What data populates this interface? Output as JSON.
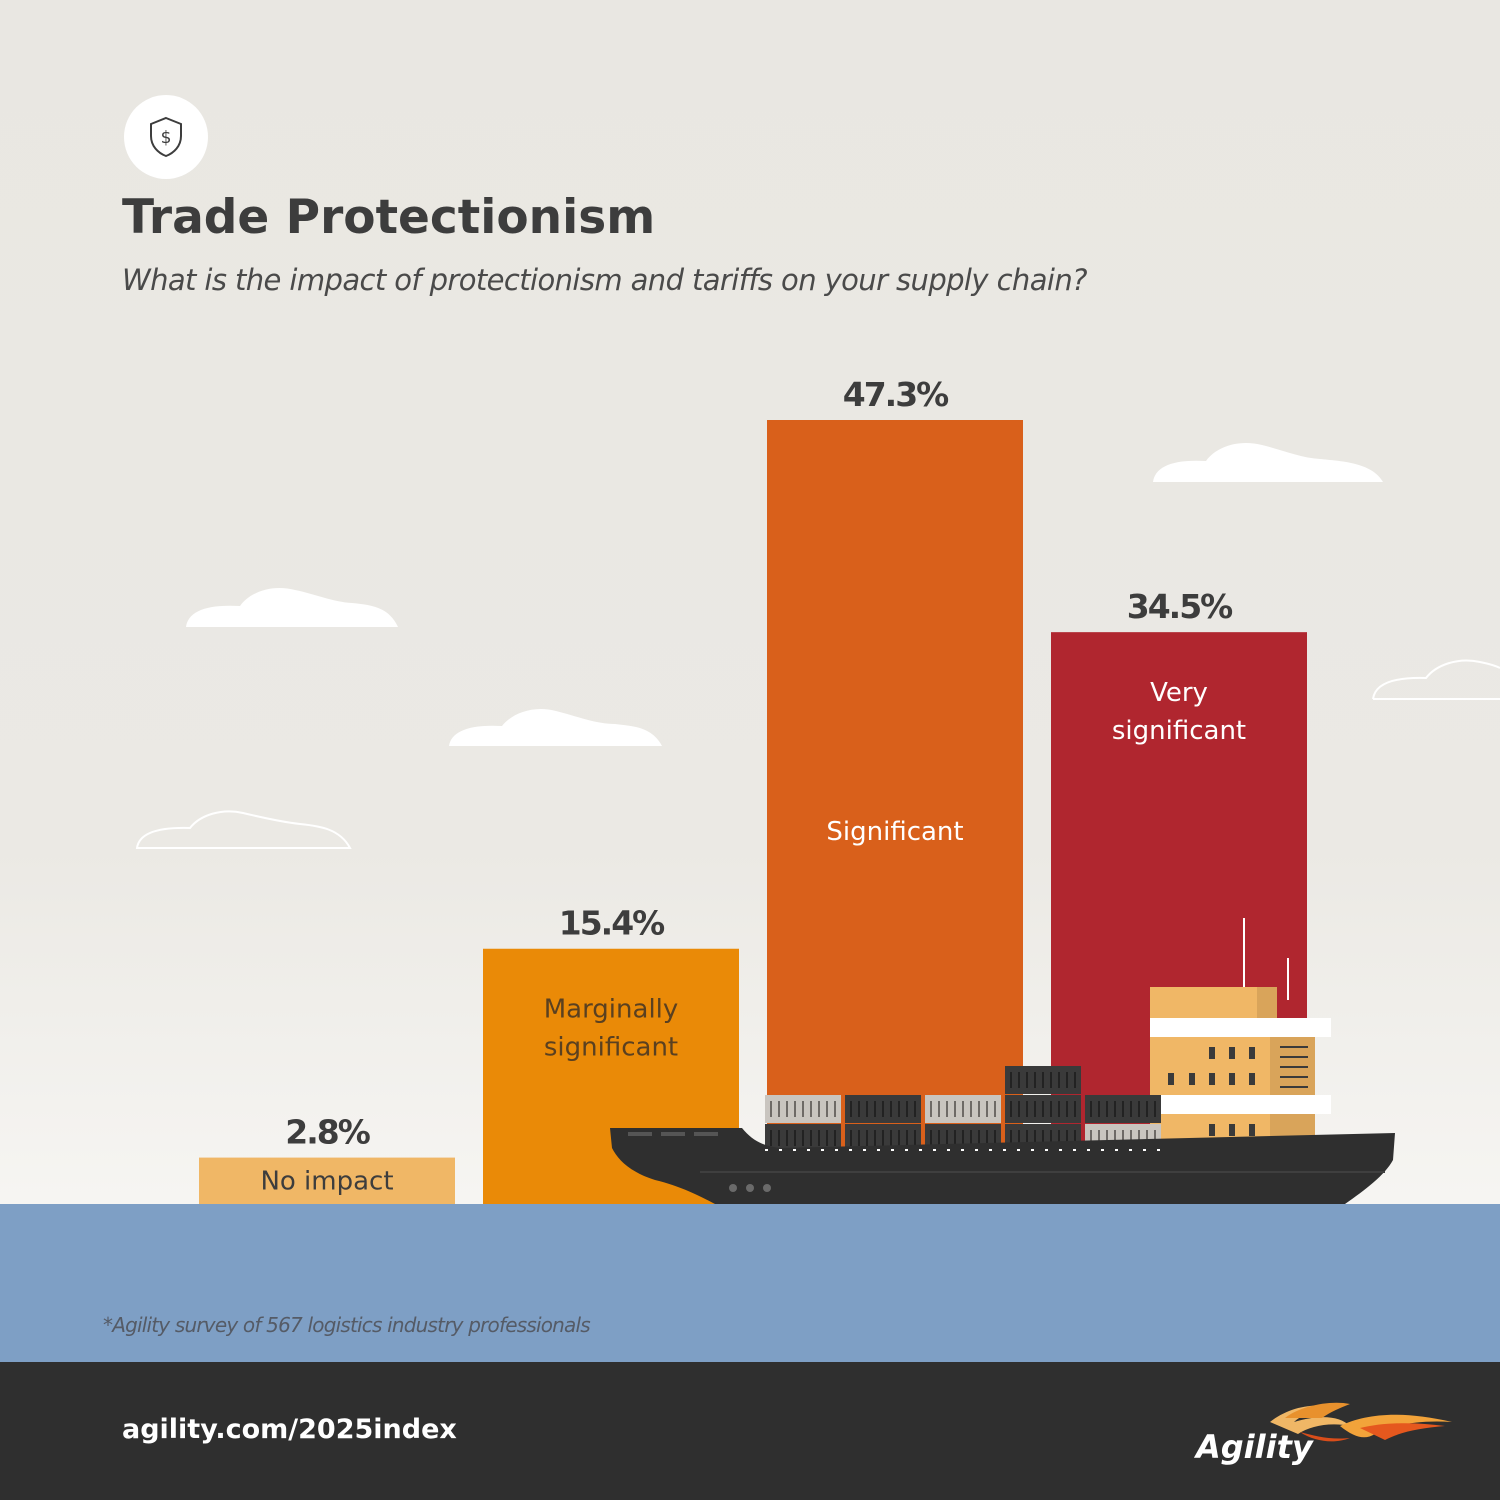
{
  "header": {
    "icon": "shield-dollar-icon",
    "title": "Trade Protectionism",
    "subtitle": "What is the impact of protectionism and tariffs on your supply chain?"
  },
  "chart_data": {
    "type": "bar",
    "title": "Trade Protectionism",
    "subtitle": "What is the impact of protectionism and tariffs on your supply chain?",
    "categories": [
      "No impact",
      "Marginally significant",
      "Significant",
      "Very significant"
    ],
    "values": [
      2.8,
      15.4,
      47.3,
      34.5
    ],
    "value_labels": [
      "2.8%",
      "15.4%",
      "47.3%",
      "34.5%"
    ],
    "category_lines": [
      [
        "No impact"
      ],
      [
        "Marginally",
        "significant"
      ],
      [
        "Significant"
      ],
      [
        "Very",
        "significant"
      ]
    ],
    "colors": [
      "#f0b766",
      "#ea8a07",
      "#d9601b",
      "#b0262f"
    ],
    "label_colors": [
      "#3d3d3d",
      "#5a4020",
      "#ffffff",
      "#ffffff"
    ],
    "unit": "%",
    "ylim": [
      0,
      50
    ],
    "grid": false,
    "legend": "none"
  },
  "footnote": "*Agility survey of 567 logistics industry professionals",
  "footer": {
    "link": "agility.com/2025index",
    "logo_text": "Agility"
  },
  "colors": {
    "background": "#e9e7e2",
    "sea": "#7e9fc5",
    "footer": "#2f2f2f",
    "title": "#3d3d3d",
    "ship_hull": "#2f2f2f"
  }
}
